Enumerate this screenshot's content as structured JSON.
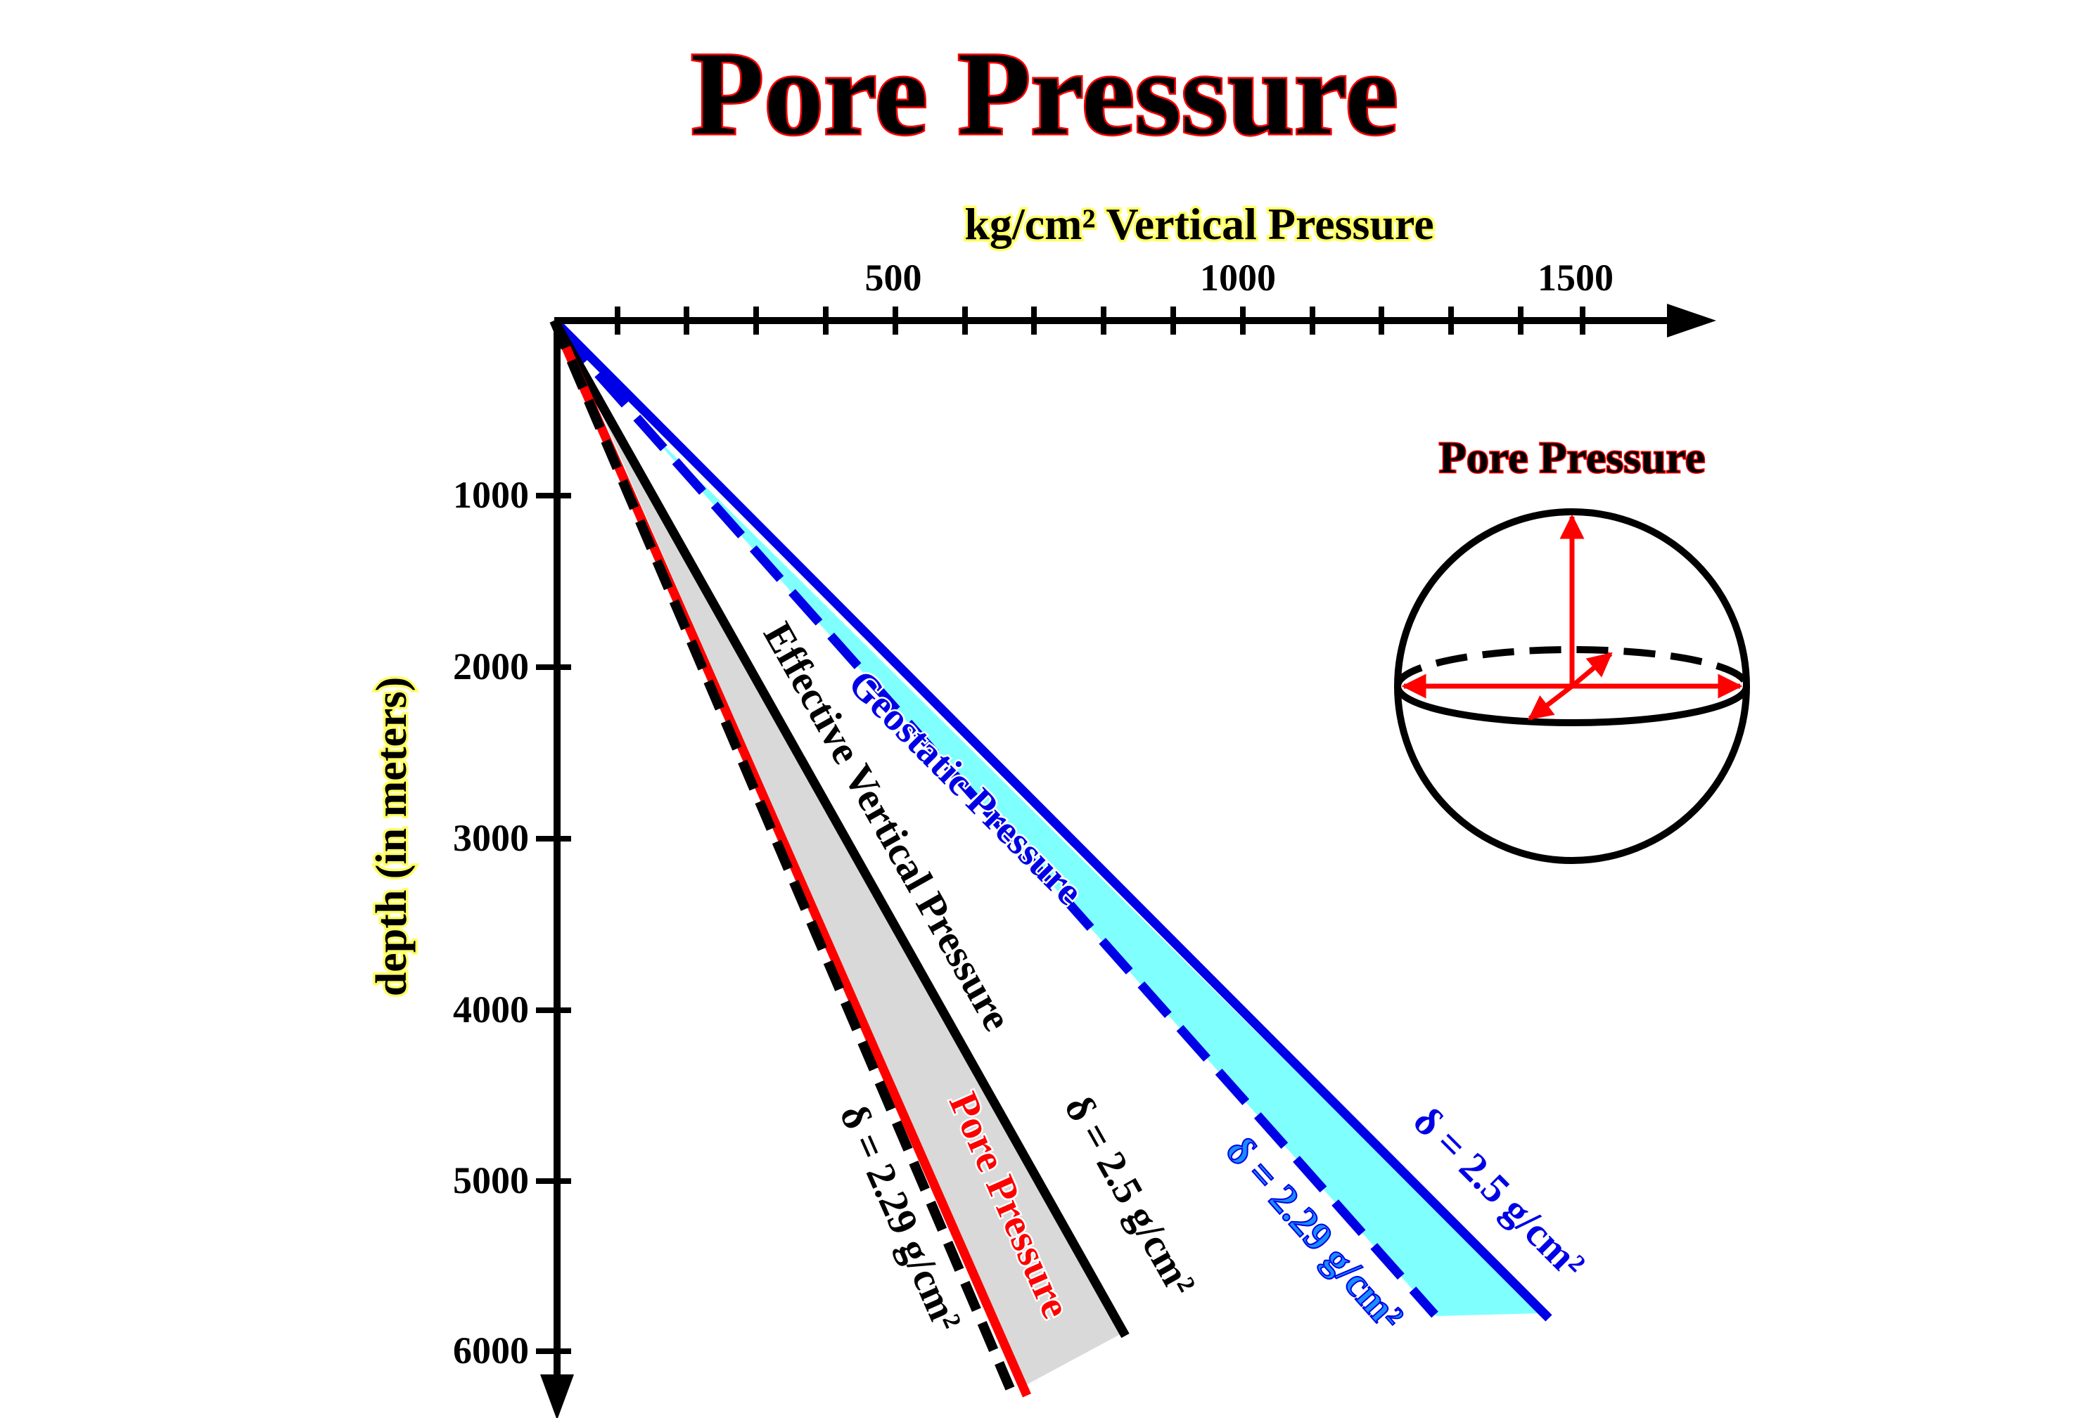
{
  "title": "Pore Pressure",
  "x_axis": {
    "label": "kg/cm² Vertical Pressure",
    "tick_labels": [
      "500",
      "1000",
      "1500"
    ]
  },
  "y_axis": {
    "label": "depth (in meters)",
    "tick_labels": [
      "1000",
      "2000",
      "3000",
      "4000",
      "5000",
      "6000"
    ]
  },
  "lines": {
    "geostatic": {
      "label": "Geostatic Pressure",
      "density_label": "δ = 2.5 g/cm²",
      "color": "#0000e6"
    },
    "geostatic_low": {
      "density_label": "δ = 2.29 g/cm²",
      "color": "#1a8cff"
    },
    "effective": {
      "label": "Effective Vertical Pressure",
      "density_label": "δ = 2.5 g/cm²",
      "color": "#000000"
    },
    "pore": {
      "label": "Pore Pressure",
      "density_label": "δ = 2.29 g/cm²",
      "color": "#ff0000"
    }
  },
  "fills": {
    "cyan": "#80ffff",
    "gray": "#d9d9d9"
  },
  "inset": {
    "title": "Pore Pressure"
  },
  "colors": {
    "title_text": "#000000",
    "title_outline": "#ff0000",
    "label_yellow": "#ffff66",
    "arrow_red": "#ff0000"
  }
}
